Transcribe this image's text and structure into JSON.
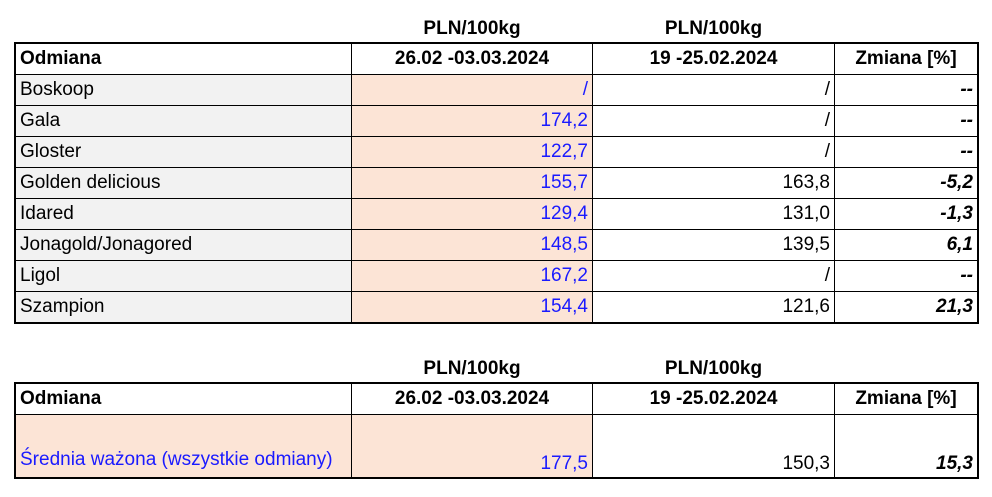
{
  "tables": [
    {
      "unit_headers": [
        "PLN/100kg",
        "PLN/100kg"
      ],
      "header": [
        "Odmiana",
        "26.02 -03.03.2024",
        "19 -25.02.2024",
        "Zmiana  [%]"
      ],
      "rows": [
        [
          "Boskoop",
          "/",
          "/",
          "--"
        ],
        [
          "Gala",
          "174,2",
          "/",
          "--"
        ],
        [
          "Gloster",
          "122,7",
          "/",
          "--"
        ],
        [
          "Golden delicious",
          "155,7",
          "163,8",
          "-5,2"
        ],
        [
          "Idared",
          "129,4",
          "131,0",
          "-1,3"
        ],
        [
          "Jonagold/Jonagored",
          "148,5",
          "139,5",
          "6,1"
        ],
        [
          "Ligol",
          "167,2",
          "/",
          "--"
        ],
        [
          "Szampion",
          "154,4",
          "121,6",
          "21,3"
        ]
      ]
    },
    {
      "unit_headers": [
        "PLN/100kg",
        "PLN/100kg"
      ],
      "header": [
        "Odmiana",
        "26.02 -03.03.2024",
        "19 -25.02.2024",
        "Zmiana  [%]"
      ],
      "rows": [
        [
          "Średnia ważona (wszystkie odmiany)",
          "177,5",
          "150,3",
          "15,3"
        ]
      ]
    }
  ]
}
